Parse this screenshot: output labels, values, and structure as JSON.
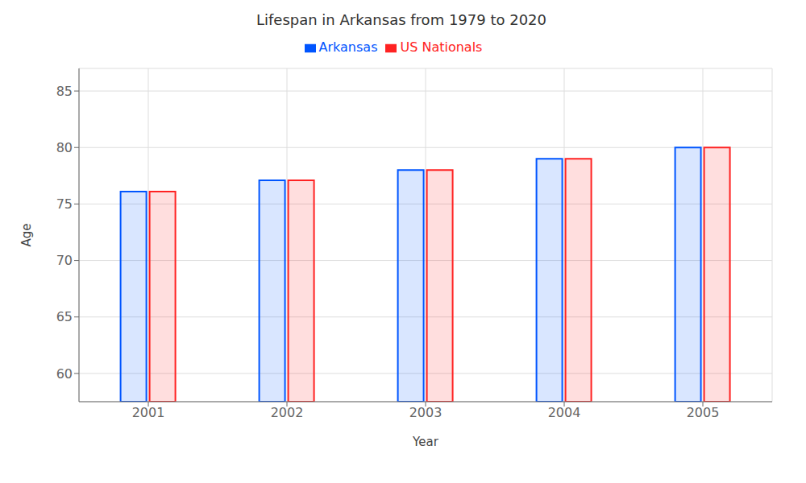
{
  "chart_data": {
    "type": "bar",
    "title": "Lifespan in Arkansas from 1979 to 2020",
    "xlabel": "Year",
    "ylabel": "Age",
    "categories": [
      "2001",
      "2002",
      "2003",
      "2004",
      "2005"
    ],
    "series": [
      {
        "name": "Arkansas",
        "color": "#0055ff",
        "values": [
          76.1,
          77.1,
          78.0,
          79.0,
          80.0
        ]
      },
      {
        "name": "US Nationals",
        "color": "#ff2222",
        "values": [
          76.1,
          77.1,
          78.0,
          79.0,
          80.0
        ]
      }
    ],
    "ylim": [
      57.5,
      87
    ],
    "yticks": [
      60,
      65,
      70,
      75,
      80,
      85
    ],
    "grid": true,
    "legend": "top"
  }
}
